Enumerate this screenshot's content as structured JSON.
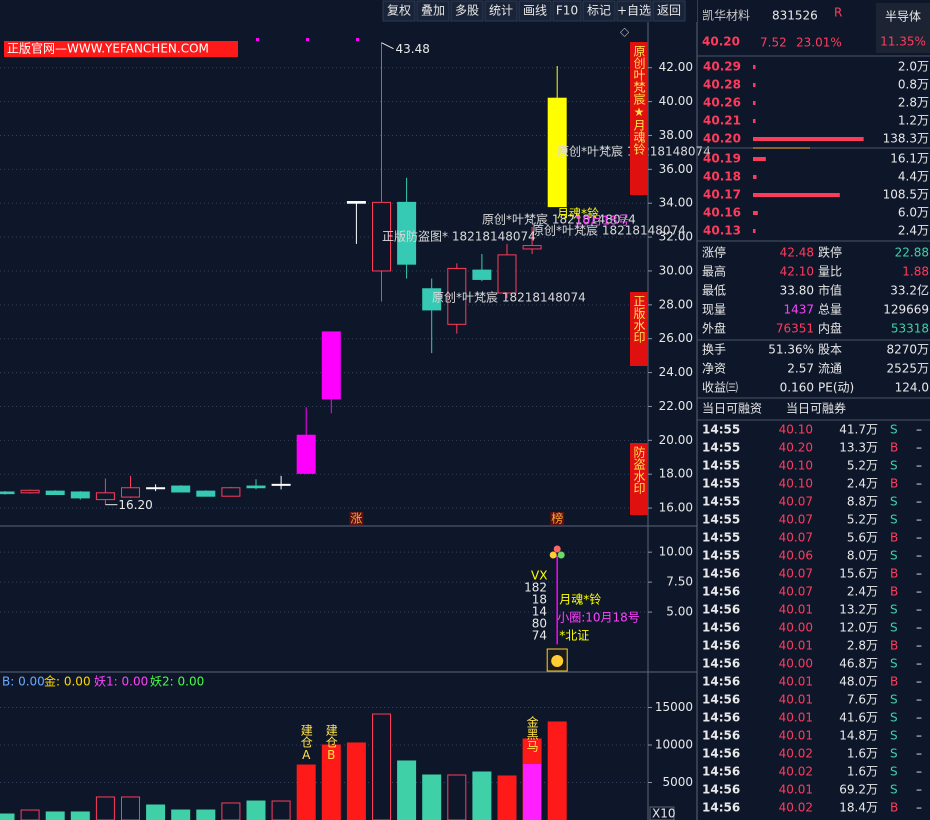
{
  "toolbar": [
    "复权",
    "叠加",
    "多股",
    "统计",
    "画线",
    "F10",
    "标记",
    "+自选",
    "返回"
  ],
  "chart_data": [
    {
      "type": "candlestick",
      "up_color": "#ff3b5c",
      "down_color": "#36c9b4",
      "grid": true,
      "candles": [
        {
          "o": 16.95,
          "h": 17.0,
          "l": 16.8,
          "c": 16.85
        },
        {
          "o": 16.9,
          "h": 17.1,
          "l": 16.85,
          "c": 17.05
        },
        {
          "o": 17.0,
          "h": 17.05,
          "l": 16.8,
          "c": 16.8
        },
        {
          "o": 16.95,
          "h": 17.0,
          "l": 16.5,
          "c": 16.6
        },
        {
          "o": 16.5,
          "h": 17.75,
          "l": 16.2,
          "c": 16.9
        },
        {
          "o": 16.65,
          "h": 17.9,
          "l": 16.6,
          "c": 17.2
        },
        {
          "o": 17.2,
          "h": 17.4,
          "l": 17.0,
          "c": 17.2,
          "color": "#ffffff"
        },
        {
          "o": 17.3,
          "h": 17.35,
          "l": 16.95,
          "c": 16.95
        },
        {
          "o": 17.0,
          "h": 17.05,
          "l": 16.7,
          "c": 16.7
        },
        {
          "o": 16.7,
          "h": 17.25,
          "l": 16.7,
          "c": 17.2
        },
        {
          "o": 17.3,
          "h": 17.7,
          "l": 17.1,
          "c": 17.2
        },
        {
          "o": 17.4,
          "h": 17.9,
          "l": 17.1,
          "c": 17.4,
          "color": "#ffffff"
        },
        {
          "o": 18.05,
          "h": 21.95,
          "l": 18.0,
          "c": 20.3,
          "color": "#ff00ff"
        },
        {
          "o": 22.45,
          "h": 26.4,
          "l": 21.6,
          "c": 26.4,
          "color": "#ff00ff"
        },
        {
          "o": 34.1,
          "h": 34.1,
          "l": 31.6,
          "c": 34.0,
          "color": "#ffffff"
        },
        {
          "o": 30.0,
          "h": 43.48,
          "l": 28.2,
          "c": 34.05
        },
        {
          "o": 34.05,
          "h": 35.5,
          "l": 29.55,
          "c": 30.4
        },
        {
          "o": 28.95,
          "h": 29.55,
          "l": 25.15,
          "c": 27.7
        },
        {
          "o": 26.85,
          "h": 30.45,
          "l": 26.3,
          "c": 30.15
        },
        {
          "o": 30.05,
          "h": 31.0,
          "l": 29.4,
          "c": 29.5
        },
        {
          "o": 28.7,
          "h": 31.6,
          "l": 28.4,
          "c": 30.95
        },
        {
          "o": 31.3,
          "h": 32.6,
          "l": 31.0,
          "c": 31.5
        },
        {
          "o": 33.8,
          "h": 42.1,
          "l": 33.8,
          "c": 40.2,
          "color": "#ffff00"
        }
      ],
      "ylim": [
        15,
        44.7
      ],
      "yticks": [
        {
          "value": 16,
          "label": "16.00"
        },
        {
          "value": 18,
          "label": "18.00"
        },
        {
          "value": 20,
          "label": "20.00"
        },
        {
          "value": 22,
          "label": "22.00"
        },
        {
          "value": 24,
          "label": "24.00"
        },
        {
          "value": 26,
          "label": "26.00"
        },
        {
          "value": 28,
          "label": "28.00"
        },
        {
          "value": 30,
          "label": "30.00"
        },
        {
          "value": 32,
          "label": "32.00"
        },
        {
          "value": 34,
          "label": "34.00"
        },
        {
          "value": 36,
          "label": "36.00"
        },
        {
          "value": 38,
          "label": "38.00"
        },
        {
          "value": 40,
          "label": "40.00"
        },
        {
          "value": 42,
          "label": "42.00"
        }
      ],
      "annotations": {
        "high": 43.48,
        "low": {
          "value": 16.2,
          "label": "16.20"
        }
      },
      "banner": "正版官网—WWW.YEFANCHEN.COM",
      "watermarks": [
        {
          "text": "原创*叶梵宸 18218148074",
          "color": "#d8d8d8"
        },
        {
          "text": "正版防盗图* 18218148074",
          "color": "#d8d8d8"
        },
        {
          "text": "原创*叶梵宸 18218148074",
          "color": "#d8d8d8"
        },
        {
          "text": "原创*叶梵宸 18218148074",
          "color": "#d8d8d8"
        },
        {
          "text": "原创*叶梵宸 18218148074",
          "color": "#d8d8d8"
        },
        {
          "text": "月魂*铃",
          "color": "#ffff00"
        },
        {
          "text": "10月18号",
          "color": "#ff40ff"
        }
      ],
      "side_labels": [
        "原创叶梵宸★月魂铃",
        "正版水印",
        "防盗水印"
      ],
      "markers": [
        "涨",
        "榜"
      ]
    },
    {
      "type": "signal",
      "ylim": [
        0,
        12.1
      ],
      "yticks": [
        {
          "value": 5,
          "label": "5.00"
        },
        {
          "value": 7.5,
          "label": "7.50"
        },
        {
          "value": 10,
          "label": "10.00"
        }
      ],
      "signal": {
        "from": 2.3,
        "to": 9.7,
        "color": "#ff00ff"
      },
      "vx": [
        "VX",
        "182",
        "18",
        "14",
        "80",
        "74"
      ],
      "name": "月魂*铃",
      "note": "小圈:10月18号",
      "board": "*北证"
    },
    {
      "type": "volume",
      "legend": [
        {
          "name": "B: 0.00",
          "color": "#6aa8ff"
        },
        {
          "name": "金: 0.00",
          "color": "#ffd700"
        },
        {
          "name": "妖1: 0.00",
          "color": "#ff40ff"
        },
        {
          "name": "妖2: 0.00",
          "color": "#40ff40"
        }
      ],
      "values": [
        800,
        1330,
        1070,
        1070,
        3070,
        3070,
        2000,
        1330,
        1330,
        2270,
        2530,
        2530,
        7330,
        10000,
        10270,
        14130,
        7870,
        6000,
        6000,
        6400,
        5870,
        10800,
        13070
      ],
      "bar_styles": [
        "down",
        "up",
        "down",
        "down",
        "up",
        "up",
        "down",
        "down",
        "down",
        "up",
        "down",
        "up",
        "solid",
        "solid",
        "solid",
        "up",
        "down",
        "down",
        "up",
        "down",
        "solid",
        "solid",
        "solid"
      ],
      "style_colors": {
        "up": "#ff3b5c",
        "down": "#3fd0a8",
        "solid": "#ff1a1a"
      },
      "overlay": {
        "color": "#ff20ff",
        "values": [
          null,
          null,
          null,
          null,
          null,
          null,
          null,
          null,
          null,
          null,
          null,
          null,
          null,
          null,
          null,
          null,
          null,
          null,
          null,
          null,
          null,
          7470,
          null
        ]
      },
      "bar_labels": [
        null,
        null,
        null,
        null,
        null,
        null,
        null,
        null,
        null,
        null,
        null,
        null,
        "建仓A",
        "建仓B",
        null,
        null,
        null,
        null,
        null,
        null,
        null,
        "金黑马",
        null
      ],
      "ylim": [
        0,
        19600
      ],
      "yticks": [
        5000,
        10000,
        15000
      ],
      "axis_note": "X10"
    }
  ],
  "quote": {
    "name": "凯华材料",
    "code": "831526",
    "flag": "R",
    "sector": "半导体",
    "price": "40.20",
    "change": "7.52",
    "pct": "23.01%",
    "sector_pct": "11.35%"
  },
  "asks": [
    {
      "price": "40.29",
      "volume": 2.0,
      "volume_label": "2.0万"
    },
    {
      "price": "40.28",
      "volume": 0.8,
      "volume_label": "0.8万"
    },
    {
      "price": "40.26",
      "volume": 2.8,
      "volume_label": "2.8万"
    },
    {
      "price": "40.21",
      "volume": 1.2,
      "volume_label": "1.2万"
    },
    {
      "price": "40.20",
      "volume": 138.3,
      "volume_label": "138.3万"
    }
  ],
  "bids": [
    {
      "price": "40.19",
      "volume": 16.1,
      "volume_label": "16.1万"
    },
    {
      "price": "40.18",
      "volume": 4.4,
      "volume_label": "4.4万"
    },
    {
      "price": "40.17",
      "volume": 108.5,
      "volume_label": "108.5万"
    },
    {
      "price": "40.16",
      "volume": 6.0,
      "volume_label": "6.0万"
    },
    {
      "price": "40.13",
      "volume": 2.4,
      "volume_label": "2.4万"
    }
  ],
  "stats": [
    [
      {
        "label": "涨停",
        "value": "42.48",
        "color": "#ff3b5c"
      },
      {
        "label": "跌停",
        "value": "22.88",
        "color": "#3fd0a8"
      }
    ],
    [
      {
        "label": "最高",
        "value": "42.10",
        "color": "#ff3b5c"
      },
      {
        "label": "量比",
        "value": "1.88",
        "color": "#ff3b5c"
      }
    ],
    [
      {
        "label": "最低",
        "value": "33.80",
        "color": "#e8e8e8"
      },
      {
        "label": "市值",
        "value": "33.2亿",
        "color": "#e8e8e8"
      }
    ],
    [
      {
        "label": "现量",
        "value": "1437",
        "color": "#ff40ff"
      },
      {
        "label": "总量",
        "value": "129669",
        "color": "#e8e8e8"
      }
    ],
    [
      {
        "label": "外盘",
        "value": "76351",
        "color": "#ff3b5c"
      },
      {
        "label": "内盘",
        "value": "53318",
        "color": "#3fd0a8"
      }
    ],
    [
      {
        "label": "换手",
        "value": "51.36%",
        "color": "#e8e8e8"
      },
      {
        "label": "股本",
        "value": "8270万",
        "color": "#e8e8e8"
      }
    ],
    [
      {
        "label": "净资",
        "value": "2.57",
        "color": "#e8e8e8"
      },
      {
        "label": "流通",
        "value": "2525万",
        "color": "#e8e8e8"
      }
    ],
    [
      {
        "label": "收益㈢",
        "value": "0.160",
        "color": "#e8e8e8"
      },
      {
        "label": "PE(动)",
        "value": "124.0",
        "color": "#e8e8e8"
      }
    ]
  ],
  "margin_header": [
    "当日可融资",
    "当日可融券"
  ],
  "trades": [
    [
      "14:55",
      "40.10",
      "41.7万",
      "S",
      "–"
    ],
    [
      "14:55",
      "40.20",
      "13.3万",
      "B",
      "–"
    ],
    [
      "14:55",
      "40.10",
      "5.2万",
      "S",
      "–"
    ],
    [
      "14:55",
      "40.10",
      "2.4万",
      "B",
      "–"
    ],
    [
      "14:55",
      "40.07",
      "8.8万",
      "S",
      "–"
    ],
    [
      "14:55",
      "40.07",
      "5.2万",
      "S",
      "–"
    ],
    [
      "14:55",
      "40.07",
      "5.6万",
      "B",
      "–"
    ],
    [
      "14:55",
      "40.06",
      "8.0万",
      "S",
      "–"
    ],
    [
      "14:56",
      "40.07",
      "15.6万",
      "B",
      "–"
    ],
    [
      "14:56",
      "40.07",
      "2.4万",
      "B",
      "–"
    ],
    [
      "14:56",
      "40.01",
      "13.2万",
      "S",
      "–"
    ],
    [
      "14:56",
      "40.00",
      "12.0万",
      "S",
      "–"
    ],
    [
      "14:56",
      "40.01",
      "2.8万",
      "B",
      "–"
    ],
    [
      "14:56",
      "40.00",
      "46.8万",
      "S",
      "–"
    ],
    [
      "14:56",
      "40.01",
      "48.0万",
      "B",
      "–"
    ],
    [
      "14:56",
      "40.01",
      "7.6万",
      "S",
      "–"
    ],
    [
      "14:56",
      "40.01",
      "41.6万",
      "S",
      "–"
    ],
    [
      "14:56",
      "40.01",
      "14.8万",
      "S",
      "–"
    ],
    [
      "14:56",
      "40.02",
      "1.6万",
      "S",
      "–"
    ],
    [
      "14:56",
      "40.02",
      "1.6万",
      "S",
      "–"
    ],
    [
      "14:56",
      "40.01",
      "69.2万",
      "S",
      "–"
    ],
    [
      "14:56",
      "40.02",
      "18.4万",
      "B",
      "–"
    ]
  ]
}
